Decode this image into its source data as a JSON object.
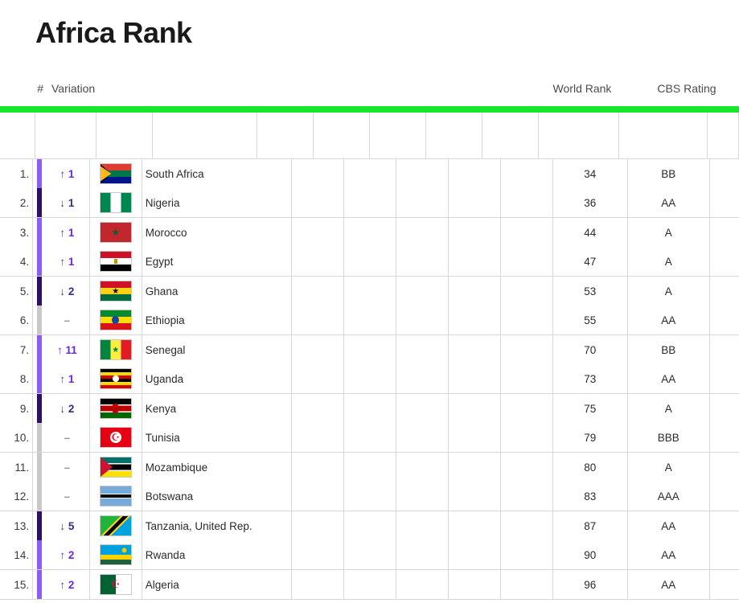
{
  "title": "Africa Rank",
  "headers": {
    "rank": "#",
    "variation": "Variation",
    "world_rank": "World Rank",
    "cbs": "CBS Rating"
  },
  "colors": {
    "accent_green": "#18e52b",
    "up": "#6d28d9",
    "down": "#3b2a82",
    "same": "#9a9a9a",
    "bar_purple_light": "#8b5cf6",
    "bar_purple_dark": "#2e1065",
    "bar_grey": "#c9c9c9",
    "border": "#d8d8d8"
  },
  "rows": [
    {
      "rank": "1.",
      "variation_dir": "up",
      "variation_text": "↑ 1",
      "bar_color": "#8b5cf6",
      "flag_class": "flag-zaf",
      "country": "South Africa",
      "world_rank": "34",
      "cbs": "BB"
    },
    {
      "rank": "2.",
      "variation_dir": "down",
      "variation_text": "↓ 1",
      "bar_color": "#2e1065",
      "flag_class": "flag-nga",
      "country": "Nigeria",
      "world_rank": "36",
      "cbs": "AA"
    },
    {
      "rank": "3.",
      "variation_dir": "up",
      "variation_text": "↑ 1",
      "bar_color": "#8b5cf6",
      "flag_class": "flag-mar",
      "country": "Morocco",
      "world_rank": "44",
      "cbs": "A"
    },
    {
      "rank": "4.",
      "variation_dir": "up",
      "variation_text": "↑ 1",
      "bar_color": "#8b5cf6",
      "flag_class": "flag-egy",
      "country": "Egypt",
      "world_rank": "47",
      "cbs": "A"
    },
    {
      "rank": "5.",
      "variation_dir": "down",
      "variation_text": "↓ 2",
      "bar_color": "#2e1065",
      "flag_class": "flag-gha",
      "country": "Ghana",
      "world_rank": "53",
      "cbs": "A"
    },
    {
      "rank": "6.",
      "variation_dir": "same",
      "variation_text": "–",
      "bar_color": "#c9c9c9",
      "flag_class": "flag-eth",
      "country": "Ethiopia",
      "world_rank": "55",
      "cbs": "AA"
    },
    {
      "rank": "7.",
      "variation_dir": "up",
      "variation_text": "↑ 11",
      "bar_color": "#8b5cf6",
      "flag_class": "flag-sen",
      "country": "Senegal",
      "world_rank": "70",
      "cbs": "BB"
    },
    {
      "rank": "8.",
      "variation_dir": "up",
      "variation_text": "↑ 1",
      "bar_color": "#8b5cf6",
      "flag_class": "flag-uga",
      "country": "Uganda",
      "world_rank": "73",
      "cbs": "AA"
    },
    {
      "rank": "9.",
      "variation_dir": "down",
      "variation_text": "↓ 2",
      "bar_color": "#2e1065",
      "flag_class": "flag-ken",
      "country": "Kenya",
      "world_rank": "75",
      "cbs": "A"
    },
    {
      "rank": "10.",
      "variation_dir": "same",
      "variation_text": "–",
      "bar_color": "#c9c9c9",
      "flag_class": "flag-tun",
      "country": "Tunisia",
      "world_rank": "79",
      "cbs": "BBB"
    },
    {
      "rank": "11.",
      "variation_dir": "same",
      "variation_text": "–",
      "bar_color": "#c9c9c9",
      "flag_class": "flag-moz",
      "country": "Mozambique",
      "world_rank": "80",
      "cbs": "A"
    },
    {
      "rank": "12.",
      "variation_dir": "same",
      "variation_text": "–",
      "bar_color": "#c9c9c9",
      "flag_class": "flag-bwa",
      "country": "Botswana",
      "world_rank": "83",
      "cbs": "AAA"
    },
    {
      "rank": "13.",
      "variation_dir": "down",
      "variation_text": "↓ 5",
      "bar_color": "#2e1065",
      "flag_class": "flag-tza",
      "country": "Tanzania, United Rep.",
      "world_rank": "87",
      "cbs": "AA"
    },
    {
      "rank": "14.",
      "variation_dir": "up",
      "variation_text": "↑ 2",
      "bar_color": "#8b5cf6",
      "flag_class": "flag-rwa",
      "country": "Rwanda",
      "world_rank": "90",
      "cbs": "AA"
    },
    {
      "rank": "15.",
      "variation_dir": "up",
      "variation_text": "↑ 2",
      "bar_color": "#8b5cf6",
      "flag_class": "flag-dza",
      "country": "Algeria",
      "world_rank": "96",
      "cbs": "AA"
    }
  ]
}
